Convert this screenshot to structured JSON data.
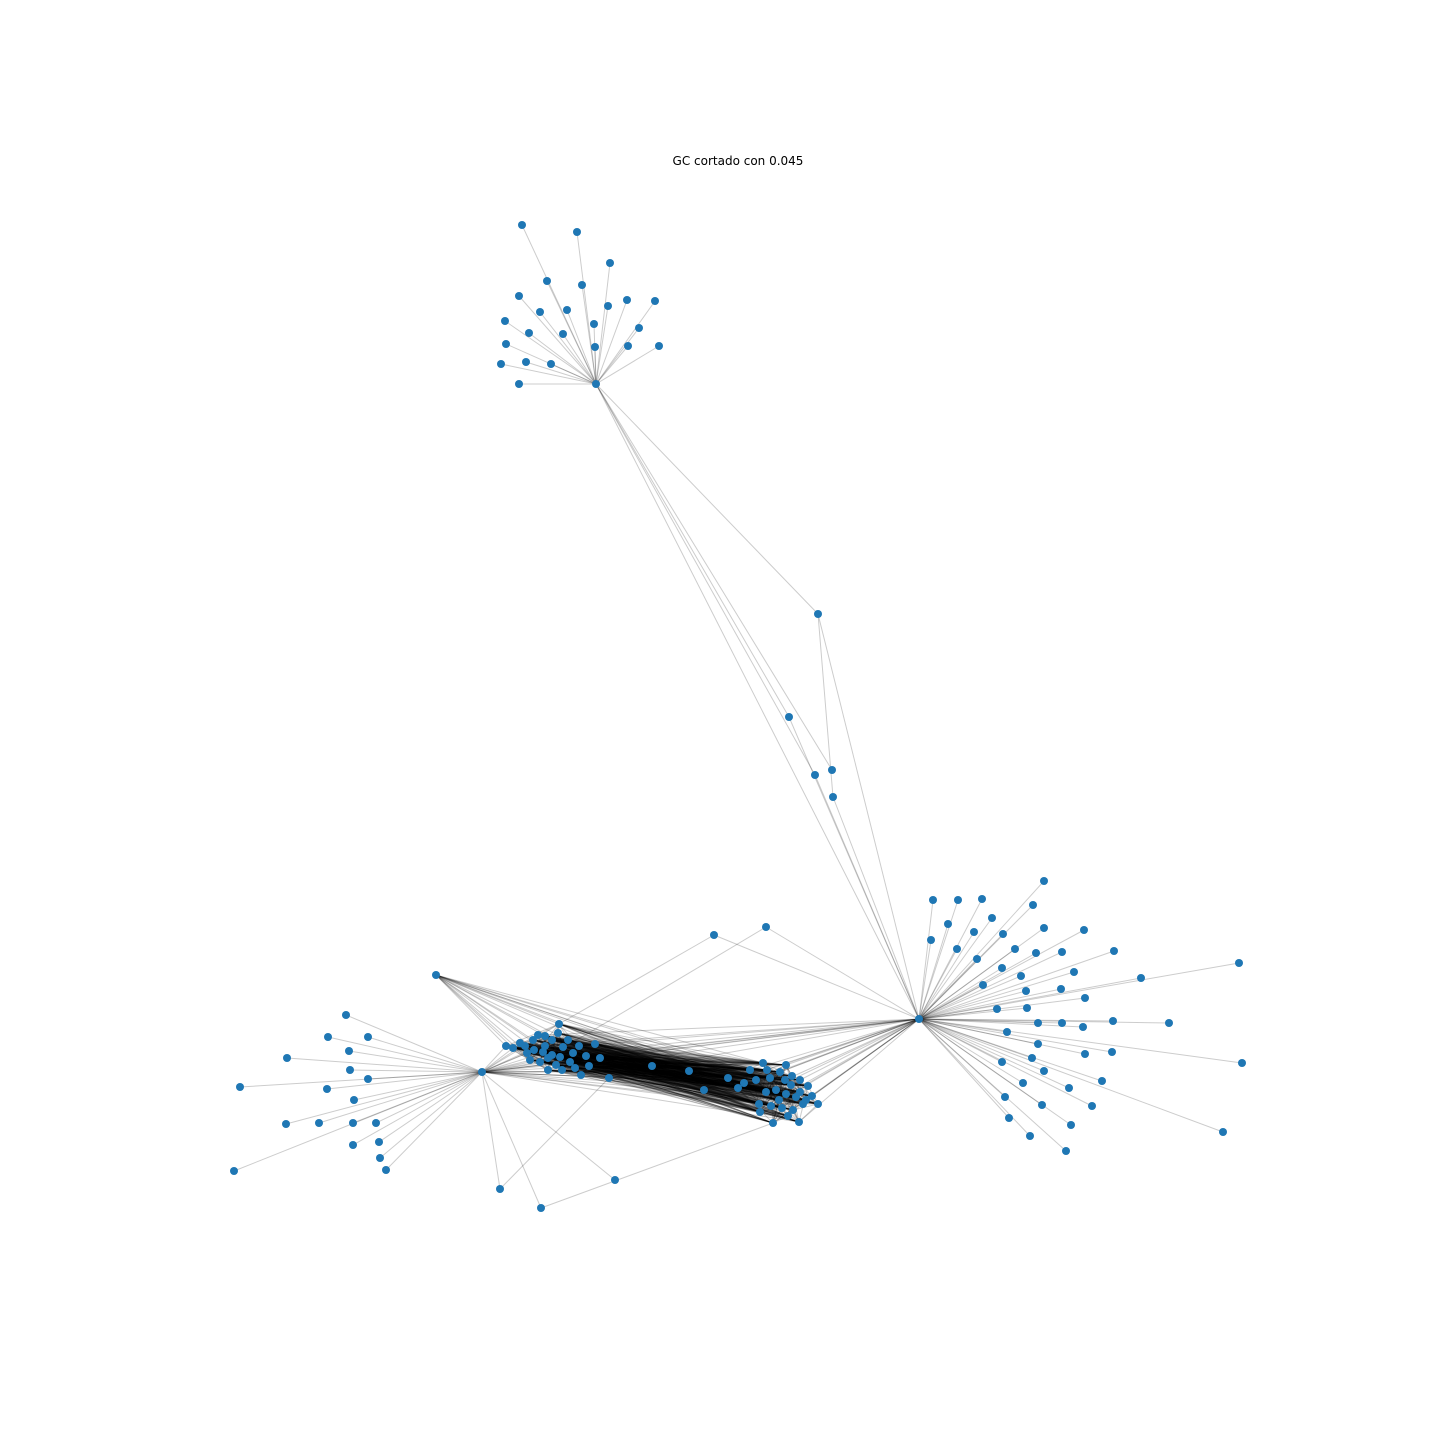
{
  "figure": {
    "title": "GC cortado con 0.045"
  },
  "style": {
    "node_color": "#1f77b4",
    "edge_color": "#000000",
    "edge_opacity": 0.2,
    "background": "#ffffff"
  },
  "graph": {
    "layout": "force-directed network",
    "axes": "off"
  }
}
